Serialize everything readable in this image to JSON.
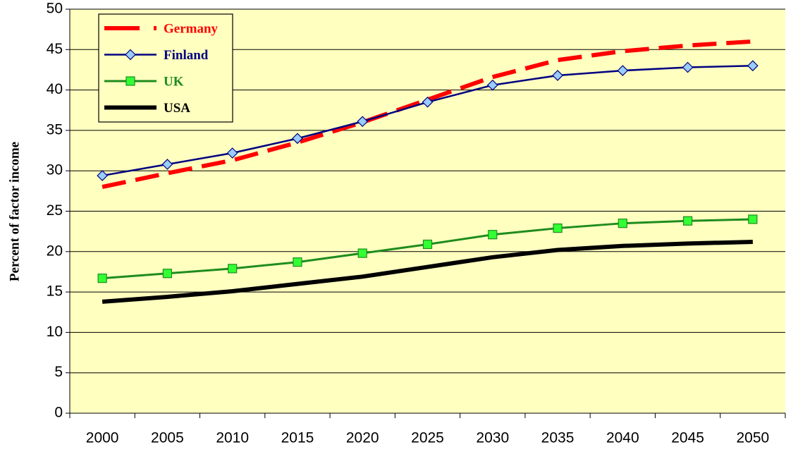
{
  "chart_data": {
    "type": "line",
    "y_label": "Percent of factor income",
    "categories": [
      "2000",
      "2005",
      "2010",
      "2015",
      "2020",
      "2025",
      "2030",
      "2035",
      "2040",
      "2045",
      "2050"
    ],
    "ylim": [
      0,
      50
    ],
    "yticks": [
      0,
      5,
      10,
      15,
      20,
      25,
      30,
      35,
      40,
      45,
      50
    ],
    "grid": true,
    "legend": "upper left",
    "background": "#ffffc0",
    "series": [
      {
        "name": "Germany",
        "color": "#ff0000",
        "line_width": 6,
        "line_style": "dashed",
        "marker": null,
        "values": [
          28.0,
          29.7,
          31.3,
          33.5,
          36.0,
          38.8,
          41.6,
          43.7,
          44.8,
          45.5,
          46.0
        ]
      },
      {
        "name": "Finland",
        "color": "#000080",
        "line_width": 2.5,
        "line_style": "solid",
        "marker": "diamond",
        "marker_fill": "#99ccff",
        "values": [
          29.4,
          30.8,
          32.2,
          34.0,
          36.1,
          38.5,
          40.6,
          41.8,
          42.4,
          42.8,
          43.0
        ]
      },
      {
        "name": "UK",
        "color": "#1e8c1e",
        "line_width": 3,
        "line_style": "solid",
        "marker": "square",
        "marker_fill": "#33ff33",
        "values": [
          16.7,
          17.3,
          17.9,
          18.7,
          19.8,
          20.9,
          22.1,
          22.9,
          23.5,
          23.8,
          24.0
        ]
      },
      {
        "name": "USA",
        "color": "#000000",
        "line_width": 6,
        "line_style": "solid",
        "marker": null,
        "values": [
          13.8,
          14.4,
          15.1,
          16.0,
          16.9,
          18.1,
          19.3,
          20.2,
          20.7,
          21.0,
          21.2
        ]
      }
    ]
  }
}
